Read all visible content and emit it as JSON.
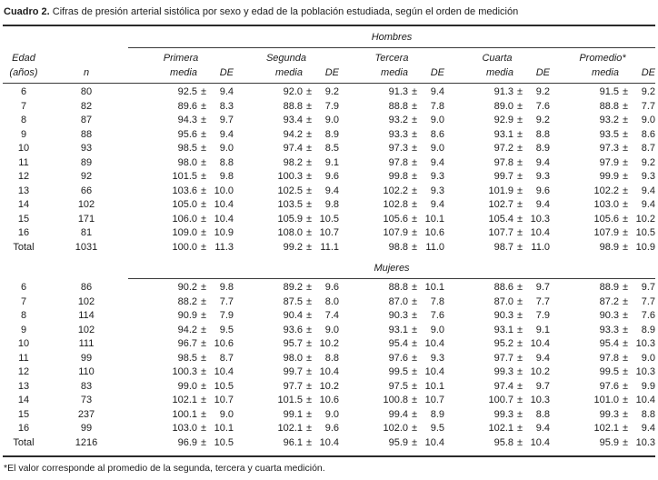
{
  "caption": {
    "label": "Cuadro 2.",
    "text": " Cifras de presión arterial sistólica por sexo y edad de la población estudiada, según el orden de medición"
  },
  "columns": {
    "edad_line1": "Edad",
    "edad_line2": "(años)",
    "n": "n",
    "groups": [
      "Primera",
      "Segunda",
      "Tercera",
      "Cuarta",
      "Promedio*"
    ],
    "media": "media",
    "de": "DE",
    "pm": "±"
  },
  "sections": [
    {
      "label": "Hombres",
      "rows": [
        {
          "edad": "6",
          "n": "80",
          "vals": [
            {
              "m": "92.5",
              "d": "9.4"
            },
            {
              "m": "92.0",
              "d": "9.2"
            },
            {
              "m": "91.3",
              "d": "9.4"
            },
            {
              "m": "91.3",
              "d": "9.2"
            },
            {
              "m": "91.5",
              "d": "9.2"
            }
          ]
        },
        {
          "edad": "7",
          "n": "82",
          "vals": [
            {
              "m": "89.6",
              "d": "8.3"
            },
            {
              "m": "88.8",
              "d": "7.9"
            },
            {
              "m": "88.8",
              "d": "7.8"
            },
            {
              "m": "89.0",
              "d": "7.6"
            },
            {
              "m": "88.8",
              "d": "7.7"
            }
          ]
        },
        {
          "edad": "8",
          "n": "87",
          "vals": [
            {
              "m": "94.3",
              "d": "9.7"
            },
            {
              "m": "93.4",
              "d": "9.0"
            },
            {
              "m": "93.2",
              "d": "9.0"
            },
            {
              "m": "92.9",
              "d": "9.2"
            },
            {
              "m": "93.2",
              "d": "9.0"
            }
          ]
        },
        {
          "edad": "9",
          "n": "88",
          "vals": [
            {
              "m": "95.6",
              "d": "9.4"
            },
            {
              "m": "94.2",
              "d": "8.9"
            },
            {
              "m": "93.3",
              "d": "8.6"
            },
            {
              "m": "93.1",
              "d": "8.8"
            },
            {
              "m": "93.5",
              "d": "8.6"
            }
          ]
        },
        {
          "edad": "10",
          "n": "93",
          "vals": [
            {
              "m": "98.5",
              "d": "9.0"
            },
            {
              "m": "97.4",
              "d": "8.5"
            },
            {
              "m": "97.3",
              "d": "9.0"
            },
            {
              "m": "97.2",
              "d": "8.9"
            },
            {
              "m": "97.3",
              "d": "8.7"
            }
          ]
        },
        {
          "edad": "11",
          "n": "89",
          "vals": [
            {
              "m": "98.0",
              "d": "8.8"
            },
            {
              "m": "98.2",
              "d": "9.1"
            },
            {
              "m": "97.8",
              "d": "9.4"
            },
            {
              "m": "97.8",
              "d": "9.4"
            },
            {
              "m": "97.9",
              "d": "9.2"
            }
          ]
        },
        {
          "edad": "12",
          "n": "92",
          "vals": [
            {
              "m": "101.5",
              "d": "9.8"
            },
            {
              "m": "100.3",
              "d": "9.6"
            },
            {
              "m": "99.8",
              "d": "9.3"
            },
            {
              "m": "99.7",
              "d": "9.3"
            },
            {
              "m": "99.9",
              "d": "9.3"
            }
          ]
        },
        {
          "edad": "13",
          "n": "66",
          "vals": [
            {
              "m": "103.6",
              "d": "10.0"
            },
            {
              "m": "102.5",
              "d": "9.4"
            },
            {
              "m": "102.2",
              "d": "9.3"
            },
            {
              "m": "101.9",
              "d": "9.6"
            },
            {
              "m": "102.2",
              "d": "9.4"
            }
          ]
        },
        {
          "edad": "14",
          "n": "102",
          "vals": [
            {
              "m": "105.0",
              "d": "10.4"
            },
            {
              "m": "103.5",
              "d": "9.8"
            },
            {
              "m": "102.8",
              "d": "9.4"
            },
            {
              "m": "102.7",
              "d": "9.4"
            },
            {
              "m": "103.0",
              "d": "9.4"
            }
          ]
        },
        {
          "edad": "15",
          "n": "171",
          "vals": [
            {
              "m": "106.0",
              "d": "10.4"
            },
            {
              "m": "105.9",
              "d": "10.5"
            },
            {
              "m": "105.6",
              "d": "10.1"
            },
            {
              "m": "105.4",
              "d": "10.3"
            },
            {
              "m": "105.6",
              "d": "10.2"
            }
          ]
        },
        {
          "edad": "16",
          "n": "81",
          "vals": [
            {
              "m": "109.0",
              "d": "10.9"
            },
            {
              "m": "108.0",
              "d": "10.7"
            },
            {
              "m": "107.9",
              "d": "10.6"
            },
            {
              "m": "107.7",
              "d": "10.4"
            },
            {
              "m": "107.9",
              "d": "10.5"
            }
          ]
        },
        {
          "edad": "Total",
          "n": "1031",
          "vals": [
            {
              "m": "100.0",
              "d": "11.3"
            },
            {
              "m": "99.2",
              "d": "11.1"
            },
            {
              "m": "98.8",
              "d": "11.0"
            },
            {
              "m": "98.7",
              "d": "11.0"
            },
            {
              "m": "98.9",
              "d": "10.9"
            }
          ]
        }
      ]
    },
    {
      "label": "Mujeres",
      "rows": [
        {
          "edad": "6",
          "n": "86",
          "vals": [
            {
              "m": "90.2",
              "d": "9.8"
            },
            {
              "m": "89.2",
              "d": "9.6"
            },
            {
              "m": "88.8",
              "d": "10.1"
            },
            {
              "m": "88.6",
              "d": "9.7"
            },
            {
              "m": "88.9",
              "d": "9.7"
            }
          ]
        },
        {
          "edad": "7",
          "n": "102",
          "vals": [
            {
              "m": "88.2",
              "d": "7.7"
            },
            {
              "m": "87.5",
              "d": "8.0"
            },
            {
              "m": "87.0",
              "d": "7.8"
            },
            {
              "m": "87.0",
              "d": "7.7"
            },
            {
              "m": "87.2",
              "d": "7.7"
            }
          ]
        },
        {
          "edad": "8",
          "n": "114",
          "vals": [
            {
              "m": "90.9",
              "d": "7.9"
            },
            {
              "m": "90.4",
              "d": "7.4"
            },
            {
              "m": "90.3",
              "d": "7.6"
            },
            {
              "m": "90.3",
              "d": "7.9"
            },
            {
              "m": "90.3",
              "d": "7.6"
            }
          ]
        },
        {
          "edad": "9",
          "n": "102",
          "vals": [
            {
              "m": "94.2",
              "d": "9.5"
            },
            {
              "m": "93.6",
              "d": "9.0"
            },
            {
              "m": "93.1",
              "d": "9.0"
            },
            {
              "m": "93.1",
              "d": "9.1"
            },
            {
              "m": "93.3",
              "d": "8.9"
            }
          ]
        },
        {
          "edad": "10",
          "n": "111",
          "vals": [
            {
              "m": "96.7",
              "d": "10.6"
            },
            {
              "m": "95.7",
              "d": "10.2"
            },
            {
              "m": "95.4",
              "d": "10.4"
            },
            {
              "m": "95.2",
              "d": "10.4"
            },
            {
              "m": "95.4",
              "d": "10.3"
            }
          ]
        },
        {
          "edad": "11",
          "n": "99",
          "vals": [
            {
              "m": "98.5",
              "d": "8.7"
            },
            {
              "m": "98.0",
              "d": "8.8"
            },
            {
              "m": "97.6",
              "d": "9.3"
            },
            {
              "m": "97.7",
              "d": "9.4"
            },
            {
              "m": "97.8",
              "d": "9.0"
            }
          ]
        },
        {
          "edad": "12",
          "n": "110",
          "vals": [
            {
              "m": "100.3",
              "d": "10.4"
            },
            {
              "m": "99.7",
              "d": "10.4"
            },
            {
              "m": "99.5",
              "d": "10.4"
            },
            {
              "m": "99.3",
              "d": "10.2"
            },
            {
              "m": "99.5",
              "d": "10.3"
            }
          ]
        },
        {
          "edad": "13",
          "n": "83",
          "vals": [
            {
              "m": "99.0",
              "d": "10.5"
            },
            {
              "m": "97.7",
              "d": "10.2"
            },
            {
              "m": "97.5",
              "d": "10.1"
            },
            {
              "m": "97.4",
              "d": "9.7"
            },
            {
              "m": "97.6",
              "d": "9.9"
            }
          ]
        },
        {
          "edad": "14",
          "n": "73",
          "vals": [
            {
              "m": "102.1",
              "d": "10.7"
            },
            {
              "m": "101.5",
              "d": "10.6"
            },
            {
              "m": "100.8",
              "d": "10.7"
            },
            {
              "m": "100.7",
              "d": "10.3"
            },
            {
              "m": "101.0",
              "d": "10.4"
            }
          ]
        },
        {
          "edad": "15",
          "n": "237",
          "vals": [
            {
              "m": "100.1",
              "d": "9.0"
            },
            {
              "m": "99.1",
              "d": "9.0"
            },
            {
              "m": "99.4",
              "d": "8.9"
            },
            {
              "m": "99.3",
              "d": "8.8"
            },
            {
              "m": "99.3",
              "d": "8.8"
            }
          ]
        },
        {
          "edad": "16",
          "n": "99",
          "vals": [
            {
              "m": "103.0",
              "d": "10.1"
            },
            {
              "m": "102.1",
              "d": "9.6"
            },
            {
              "m": "102.0",
              "d": "9.5"
            },
            {
              "m": "102.1",
              "d": "9.4"
            },
            {
              "m": "102.1",
              "d": "9.4"
            }
          ]
        },
        {
          "edad": "Total",
          "n": "1216",
          "vals": [
            {
              "m": "96.9",
              "d": "10.5"
            },
            {
              "m": "96.1",
              "d": "10.4"
            },
            {
              "m": "95.9",
              "d": "10.4"
            },
            {
              "m": "95.8",
              "d": "10.4"
            },
            {
              "m": "95.9",
              "d": "10.3"
            }
          ]
        }
      ]
    }
  ],
  "footnote": "*El valor corresponde al promedio de la segunda, tercera y cuarta medición."
}
